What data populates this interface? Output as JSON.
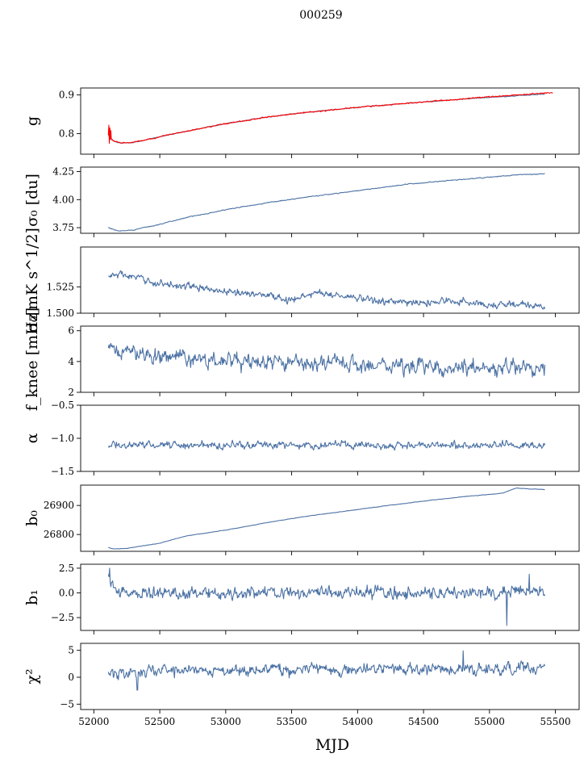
{
  "figure": {
    "title": "000259",
    "xlabel": "MJD",
    "xlim": [
      51900,
      55680
    ],
    "xticks": [
      52000,
      52500,
      53000,
      53500,
      54000,
      54500,
      55000,
      55500
    ],
    "xtick_labels": [
      "52000",
      "52500",
      "53000",
      "53500",
      "54000",
      "54500",
      "55000",
      "55500"
    ],
    "series_color": "#4c72a4",
    "overlay_color": "#ff0000"
  },
  "chart_data": [
    {
      "type": "line",
      "id": "g",
      "ylabel": "g",
      "ylim": [
        0.747,
        0.918
      ],
      "yticks": [
        0.8,
        0.9
      ],
      "ytick_labels": [
        "0.8",
        "0.9"
      ],
      "x_range": [
        52110,
        55420
      ],
      "series": [
        {
          "kind": "main",
          "noise": 0.0008,
          "x": [
            52110,
            52120,
            52150,
            52200,
            52250,
            52300,
            52400,
            52500,
            52700,
            53000,
            53300,
            53500,
            54000,
            54500,
            55000,
            55300,
            55420
          ],
          "values": [
            0.797,
            0.79,
            0.781,
            0.776,
            0.776,
            0.778,
            0.784,
            0.792,
            0.806,
            0.826,
            0.842,
            0.851,
            0.868,
            0.882,
            0.894,
            0.9,
            0.902
          ]
        }
      ],
      "overlay": {
        "x": [
          52110,
          52120,
          52150,
          52200,
          52250,
          52300,
          52400,
          52500,
          52700,
          53000,
          53300,
          53500,
          54000,
          54500,
          55000,
          55300,
          55480
        ],
        "values": [
          0.797,
          0.79,
          0.781,
          0.776,
          0.776,
          0.778,
          0.784,
          0.792,
          0.806,
          0.826,
          0.842,
          0.851,
          0.868,
          0.882,
          0.895,
          0.902,
          0.906
        ],
        "noise": 0.0012,
        "spikes": [
          [
            52115,
            0.822
          ],
          [
            52118,
            0.775
          ],
          [
            52122,
            0.815
          ],
          [
            52126,
            0.785
          ],
          [
            52130,
            0.808
          ]
        ]
      }
    },
    {
      "type": "line",
      "id": "sigma0-du",
      "ylabel": "σ₀ [du]",
      "ylim": [
        3.7,
        4.29
      ],
      "yticks": [
        3.75,
        4.0,
        4.25
      ],
      "ytick_labels": [
        "3.75",
        "4.00",
        "4.25"
      ],
      "x_range": [
        52110,
        55420
      ],
      "series": [
        {
          "kind": "main",
          "noise": 0.003,
          "x": [
            52110,
            52150,
            52200,
            52300,
            52500,
            52700,
            53000,
            53300,
            53600,
            54000,
            54400,
            54800,
            55200,
            55420
          ],
          "values": [
            3.75,
            3.73,
            3.72,
            3.73,
            3.78,
            3.84,
            3.91,
            3.97,
            4.02,
            4.08,
            4.14,
            4.18,
            4.22,
            4.23
          ]
        }
      ]
    },
    {
      "type": "line",
      "id": "sigma0-mks",
      "ylabel": "σ₀[mK s^1/2]",
      "ylim": [
        1.5,
        1.5628
      ],
      "yticks": [
        1.5,
        1.525
      ],
      "ytick_labels": [
        "1.500",
        "1.525"
      ],
      "x_range": [
        52110,
        55420
      ],
      "series": [
        {
          "kind": "main",
          "noise": 0.0028,
          "x": [
            52110,
            52200,
            52500,
            52700,
            53000,
            53300,
            53500,
            53700,
            54000,
            54300,
            54500,
            54700,
            55000,
            55200,
            55300,
            55420
          ],
          "values": [
            1.535,
            1.537,
            1.528,
            1.526,
            1.52,
            1.518,
            1.512,
            1.52,
            1.514,
            1.51,
            1.51,
            1.512,
            1.508,
            1.509,
            1.507,
            1.505
          ]
        }
      ]
    },
    {
      "type": "line",
      "id": "fknee",
      "ylabel": "f_knee [mHz]",
      "ylim": [
        2.0,
        6.3
      ],
      "yticks": [
        2,
        4,
        6
      ],
      "ytick_labels": [
        "2",
        "4",
        "6"
      ],
      "x_range": [
        52110,
        55420
      ],
      "series": [
        {
          "kind": "main",
          "noise": 0.42,
          "x": [
            52110,
            52300,
            52600,
            53000,
            53500,
            54000,
            54500,
            55000,
            55420
          ],
          "values": [
            4.7,
            4.6,
            4.3,
            4.0,
            3.9,
            3.8,
            3.7,
            3.6,
            3.5
          ]
        }
      ]
    },
    {
      "type": "line",
      "id": "alpha",
      "ylabel": "α",
      "ylim": [
        -1.5,
        -0.5
      ],
      "yticks": [
        -1.5,
        -1.0,
        -0.5
      ],
      "ytick_labels": [
        "−1.5",
        "−1.0",
        "−0.5"
      ],
      "x_range": [
        52110,
        55420
      ],
      "series": [
        {
          "kind": "main",
          "noise": 0.045,
          "x": [
            52110,
            53000,
            54000,
            55000,
            55420
          ],
          "values": [
            -1.1,
            -1.1,
            -1.1,
            -1.1,
            -1.1
          ]
        }
      ]
    },
    {
      "type": "line",
      "id": "b0",
      "ylabel": "b₀",
      "ylim": [
        26742,
        26970
      ],
      "yticks": [
        26800,
        26900
      ],
      "ytick_labels": [
        "26800",
        "26900"
      ],
      "x_range": [
        52110,
        55420
      ],
      "series": [
        {
          "kind": "main",
          "noise": 0.6,
          "x": [
            52110,
            52150,
            52250,
            52500,
            52700,
            53000,
            53300,
            53600,
            53900,
            54200,
            54500,
            54800,
            55100,
            55200,
            55300,
            55420
          ],
          "values": [
            26755,
            26750,
            26752,
            26770,
            26795,
            26815,
            26840,
            26862,
            26880,
            26898,
            26915,
            26930,
            26942,
            26960,
            26957,
            26955
          ]
        }
      ]
    },
    {
      "type": "line",
      "id": "b1",
      "ylabel": "b₁",
      "ylim": [
        -3.8,
        2.9
      ],
      "yticks": [
        -2.5,
        0.0,
        2.5
      ],
      "ytick_labels": [
        "−2.5",
        "0.0",
        "2.5"
      ],
      "x_range": [
        52110,
        55420
      ],
      "series": [
        {
          "kind": "main",
          "noise": 0.5,
          "x": [
            52110,
            52140,
            52200,
            53000,
            54000,
            55000,
            55420
          ],
          "values": [
            1.8,
            0.6,
            0.0,
            0.0,
            0.0,
            0.0,
            0.0
          ],
          "spikes": [
            [
              52120,
              2.5
            ],
            [
              55130,
              -3.3
            ],
            [
              55300,
              1.9
            ]
          ]
        }
      ]
    },
    {
      "type": "line",
      "id": "chi2",
      "ylabel": "χ²",
      "ylim": [
        -6.0,
        6.3
      ],
      "yticks": [
        -5,
        0,
        5
      ],
      "ytick_labels": [
        "−5",
        "0",
        "5"
      ],
      "x_range": [
        52110,
        55420
      ],
      "series": [
        {
          "kind": "main",
          "noise": 0.9,
          "x": [
            52110,
            52500,
            53000,
            54000,
            55000,
            55420
          ],
          "values": [
            0.6,
            1.3,
            1.4,
            1.5,
            1.5,
            1.7
          ],
          "spikes": [
            [
              52330,
              -2.4
            ],
            [
              54800,
              4.9
            ]
          ]
        }
      ]
    }
  ]
}
